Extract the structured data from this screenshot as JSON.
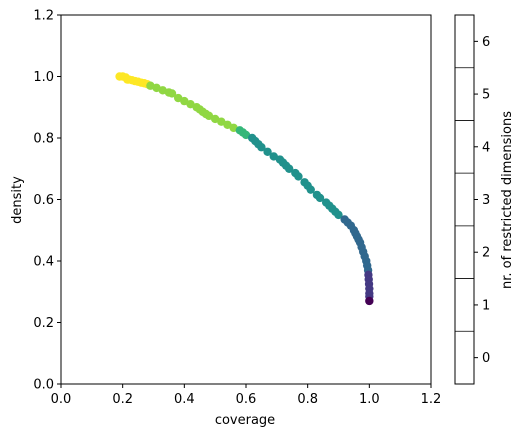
{
  "chart_data": {
    "type": "scatter",
    "title": "",
    "xlabel": "coverage",
    "ylabel": "density",
    "xlim": [
      0.0,
      1.2
    ],
    "ylim": [
      0.0,
      1.2
    ],
    "xticks": [
      "0.0",
      "0.2",
      "0.4",
      "0.6",
      "0.8",
      "1.0",
      "1.2"
    ],
    "yticks": [
      "0.0",
      "0.2",
      "0.4",
      "0.6",
      "0.8",
      "1.0",
      "1.2"
    ],
    "grid": false,
    "colorbar": {
      "label": "nr. of restricted dimensions",
      "ticks": [
        "0",
        "1",
        "2",
        "3",
        "4",
        "5",
        "6"
      ],
      "colors": [
        "#440154",
        "#443983",
        "#31688e",
        "#21918c",
        "#35b779",
        "#90d743",
        "#fde725"
      ]
    },
    "series": [
      {
        "restricted_dimensions": 6,
        "points": [
          [
            0.19,
            1.0
          ],
          [
            0.2,
            1.0
          ],
          [
            0.21,
            0.997
          ],
          [
            0.215,
            0.99
          ],
          [
            0.22,
            0.99
          ],
          [
            0.23,
            0.988
          ],
          [
            0.24,
            0.985
          ],
          [
            0.25,
            0.983
          ],
          [
            0.26,
            0.98
          ],
          [
            0.27,
            0.978
          ],
          [
            0.28,
            0.975
          ]
        ]
      },
      {
        "restricted_dimensions": 5,
        "points": [
          [
            0.29,
            0.97
          ],
          [
            0.31,
            0.963
          ],
          [
            0.33,
            0.955
          ],
          [
            0.35,
            0.948
          ],
          [
            0.36,
            0.945
          ],
          [
            0.38,
            0.93
          ],
          [
            0.4,
            0.92
          ],
          [
            0.42,
            0.91
          ],
          [
            0.44,
            0.9
          ],
          [
            0.45,
            0.893
          ],
          [
            0.46,
            0.885
          ],
          [
            0.47,
            0.878
          ],
          [
            0.48,
            0.872
          ],
          [
            0.5,
            0.862
          ],
          [
            0.52,
            0.853
          ],
          [
            0.54,
            0.843
          ],
          [
            0.56,
            0.833
          ]
        ]
      },
      {
        "restricted_dimensions": 4,
        "points": [
          [
            0.58,
            0.825
          ],
          [
            0.59,
            0.818
          ],
          [
            0.6,
            0.81
          ]
        ]
      },
      {
        "restricted_dimensions": 3,
        "points": [
          [
            0.62,
            0.8
          ],
          [
            0.63,
            0.79
          ],
          [
            0.64,
            0.78
          ],
          [
            0.65,
            0.77
          ],
          [
            0.67,
            0.755
          ],
          [
            0.69,
            0.74
          ],
          [
            0.71,
            0.73
          ],
          [
            0.72,
            0.72
          ],
          [
            0.73,
            0.71
          ],
          [
            0.74,
            0.7
          ],
          [
            0.76,
            0.686
          ],
          [
            0.77,
            0.675
          ],
          [
            0.79,
            0.656
          ],
          [
            0.8,
            0.645
          ],
          [
            0.81,
            0.632
          ],
          [
            0.83,
            0.615
          ],
          [
            0.84,
            0.605
          ],
          [
            0.86,
            0.59
          ],
          [
            0.87,
            0.58
          ],
          [
            0.88,
            0.57
          ],
          [
            0.89,
            0.56
          ],
          [
            0.9,
            0.55
          ]
        ]
      },
      {
        "restricted_dimensions": 2,
        "points": [
          [
            0.92,
            0.535
          ],
          [
            0.93,
            0.525
          ],
          [
            0.94,
            0.515
          ],
          [
            0.95,
            0.5
          ],
          [
            0.955,
            0.49
          ],
          [
            0.96,
            0.48
          ],
          [
            0.965,
            0.47
          ],
          [
            0.97,
            0.46
          ],
          [
            0.975,
            0.445
          ],
          [
            0.98,
            0.43
          ],
          [
            0.985,
            0.415
          ],
          [
            0.99,
            0.4
          ],
          [
            0.993,
            0.385
          ],
          [
            0.996,
            0.37
          ]
        ]
      },
      {
        "restricted_dimensions": 1,
        "points": [
          [
            0.997,
            0.355
          ],
          [
            0.998,
            0.34
          ],
          [
            0.999,
            0.325
          ],
          [
            1.0,
            0.31
          ],
          [
            1.0,
            0.295
          ],
          [
            1.0,
            0.285
          ]
        ]
      },
      {
        "restricted_dimensions": 0,
        "points": [
          [
            1.0,
            0.27
          ]
        ]
      }
    ]
  }
}
